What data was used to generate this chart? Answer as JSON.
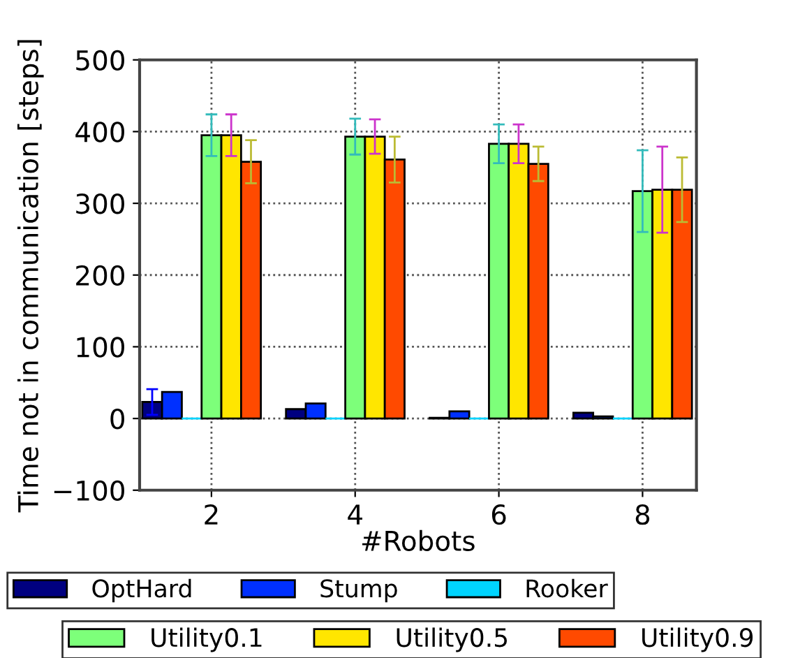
{
  "chart_data": {
    "type": "bar",
    "xlabel": "#Robots",
    "ylabel": "Time not in communication [steps]",
    "x": [
      2,
      4,
      6,
      8
    ],
    "xlim": [
      1,
      8.75
    ],
    "xticks": [
      2,
      4,
      6,
      8
    ],
    "ylim": [
      -100,
      500
    ],
    "yticks": [
      -100,
      0,
      100,
      200,
      300,
      400,
      500
    ],
    "grid": true,
    "legend": "bottom",
    "series": [
      {
        "name": "OptHard",
        "color": "#000080",
        "values": [
          23,
          13,
          1,
          8
        ],
        "errors": [
          18,
          null,
          null,
          null
        ]
      },
      {
        "name": "Stump",
        "color": "#0030ff",
        "values": [
          37,
          21,
          10,
          3
        ]
      },
      {
        "name": "Rooker",
        "color": "#00d4ff",
        "values": [
          0,
          0,
          0,
          0
        ]
      },
      {
        "name": "Utility0.1",
        "color": "#7dff7a",
        "values": [
          395,
          393,
          383,
          317
        ],
        "errors": [
          29,
          25,
          27,
          57
        ]
      },
      {
        "name": "Utility0.5",
        "color": "#ffe600",
        "values": [
          395,
          393,
          383,
          319
        ],
        "errors": [
          29,
          24,
          27,
          60
        ]
      },
      {
        "name": "Utility0.9",
        "color": "#ff4a00",
        "values": [
          358,
          361,
          355,
          319
        ],
        "errors": [
          30,
          32,
          24,
          45
        ]
      }
    ]
  }
}
